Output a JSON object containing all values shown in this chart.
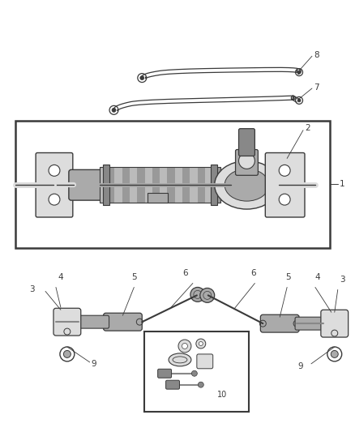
{
  "bg_color": "#ffffff",
  "line_color": "#3a3a3a",
  "fig_width": 4.38,
  "fig_height": 5.33,
  "dpi": 100,
  "gray_fill": "#c8c8c8",
  "dark_gray": "#888888",
  "mid_gray": "#aaaaaa",
  "light_gray": "#dddddd"
}
